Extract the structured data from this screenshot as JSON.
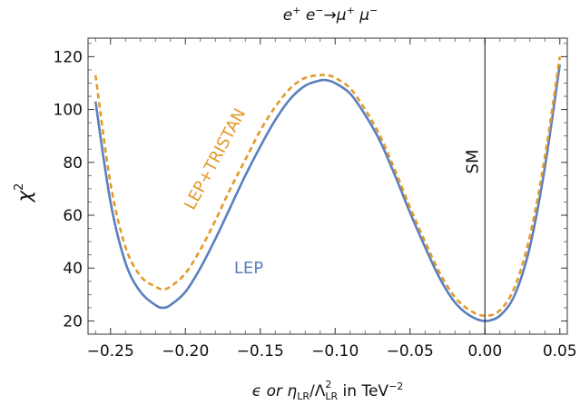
{
  "chart_data": {
    "type": "line",
    "title": {
      "base1": "e",
      "sup1": "+",
      "base2": " e",
      "sup2": "−",
      "arrow": "→",
      "base3": "μ",
      "sup3": "+",
      "base4": " μ",
      "sup4": "−"
    },
    "xlabel": {
      "part1": "ϵ or ",
      "eta": "η",
      "sub1": "LR",
      "slash": "/",
      "lambda": "Λ",
      "sup2": "2",
      "sub2": "LR",
      "part2": " in TeV",
      "exp": "−2"
    },
    "ylabel": {
      "base": "χ",
      "sup": "2"
    },
    "xlim": [
      -0.265,
      0.055
    ],
    "ylim": [
      15,
      127
    ],
    "xticks": [
      -0.25,
      -0.2,
      -0.15,
      -0.1,
      -0.05,
      0.0,
      0.05
    ],
    "xtick_labels": [
      "−0.25",
      "−0.20",
      "−0.15",
      "−0.10",
      "−0.05",
      "0.00",
      "0.05"
    ],
    "yticks": [
      20,
      40,
      60,
      80,
      100,
      120
    ],
    "ytick_labels": [
      "20",
      "40",
      "60",
      "80",
      "100",
      "120"
    ],
    "series": [
      {
        "name": "LEP",
        "color": "#5b7fbd",
        "style": "solid",
        "x": [
          -0.26,
          -0.25,
          -0.24,
          -0.23,
          -0.22,
          -0.215,
          -0.21,
          -0.2,
          -0.19,
          -0.18,
          -0.17,
          -0.16,
          -0.15,
          -0.14,
          -0.13,
          -0.12,
          -0.11,
          -0.105,
          -0.1,
          -0.09,
          -0.08,
          -0.07,
          -0.06,
          -0.05,
          -0.04,
          -0.03,
          -0.02,
          -0.01,
          0.0,
          0.01,
          0.02,
          0.03,
          0.04,
          0.05
        ],
        "y": [
          103,
          65,
          42,
          31,
          26,
          25,
          26,
          31,
          40,
          51,
          63,
          75,
          86,
          96,
          104,
          109,
          111,
          111,
          110,
          106,
          98,
          88,
          75,
          61,
          48,
          36,
          27,
          22,
          20,
          22,
          30,
          48,
          78,
          117
        ]
      },
      {
        "name": "LEP+TRISTAN",
        "color": "#e29a2a",
        "style": "dashed",
        "x": [
          -0.26,
          -0.25,
          -0.24,
          -0.23,
          -0.22,
          -0.215,
          -0.21,
          -0.2,
          -0.19,
          -0.18,
          -0.17,
          -0.16,
          -0.15,
          -0.14,
          -0.13,
          -0.12,
          -0.11,
          -0.105,
          -0.1,
          -0.09,
          -0.08,
          -0.07,
          -0.06,
          -0.05,
          -0.04,
          -0.03,
          -0.02,
          -0.01,
          0.0,
          0.01,
          0.02,
          0.03,
          0.04,
          0.05
        ],
        "y": [
          113,
          72,
          48,
          37,
          33,
          32,
          33,
          38,
          47,
          58,
          70,
          81,
          92,
          101,
          108,
          112,
          113,
          113,
          112,
          108,
          100,
          90,
          77,
          63,
          50,
          38,
          29,
          24,
          22,
          24,
          33,
          52,
          82,
          120
        ]
      }
    ],
    "vline": {
      "x": 0.0,
      "label": "SM"
    },
    "annotations": [
      {
        "text": "LEP",
        "color": "#5b7fbd"
      },
      {
        "text": "LEP+TRISTAN",
        "color": "#e29a2a"
      }
    ]
  }
}
